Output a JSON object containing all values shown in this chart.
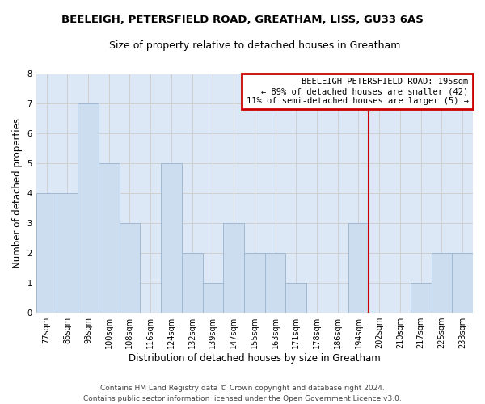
{
  "title": "BEELEIGH, PETERSFIELD ROAD, GREATHAM, LISS, GU33 6AS",
  "subtitle": "Size of property relative to detached houses in Greatham",
  "xlabel": "Distribution of detached houses by size in Greatham",
  "ylabel": "Number of detached properties",
  "categories": [
    "77sqm",
    "85sqm",
    "93sqm",
    "100sqm",
    "108sqm",
    "116sqm",
    "124sqm",
    "132sqm",
    "139sqm",
    "147sqm",
    "155sqm",
    "163sqm",
    "171sqm",
    "178sqm",
    "186sqm",
    "194sqm",
    "202sqm",
    "210sqm",
    "217sqm",
    "225sqm",
    "233sqm"
  ],
  "values": [
    4,
    4,
    7,
    5,
    3,
    0,
    5,
    2,
    1,
    3,
    2,
    2,
    1,
    0,
    0,
    3,
    0,
    0,
    1,
    2,
    2
  ],
  "bar_color": "#ccddf0",
  "bar_edgecolor": "#a0b8d0",
  "grid_color": "#d0d0d0",
  "vline_x": 15.5,
  "vline_color": "#cc0000",
  "annotation_text": "BEELEIGH PETERSFIELD ROAD: 195sqm\n← 89% of detached houses are smaller (42)\n11% of semi-detached houses are larger (5) →",
  "annotation_box_color": "#cc0000",
  "background_color": "#dce8f5",
  "ylim": [
    0,
    8
  ],
  "yticks": [
    0,
    1,
    2,
    3,
    4,
    5,
    6,
    7,
    8
  ],
  "footer": "Contains HM Land Registry data © Crown copyright and database right 2024.\nContains public sector information licensed under the Open Government Licence v3.0.",
  "title_fontsize": 9.5,
  "subtitle_fontsize": 9,
  "xlabel_fontsize": 8.5,
  "ylabel_fontsize": 8.5,
  "tick_fontsize": 7,
  "footer_fontsize": 6.5,
  "ann_fontsize": 7.5
}
